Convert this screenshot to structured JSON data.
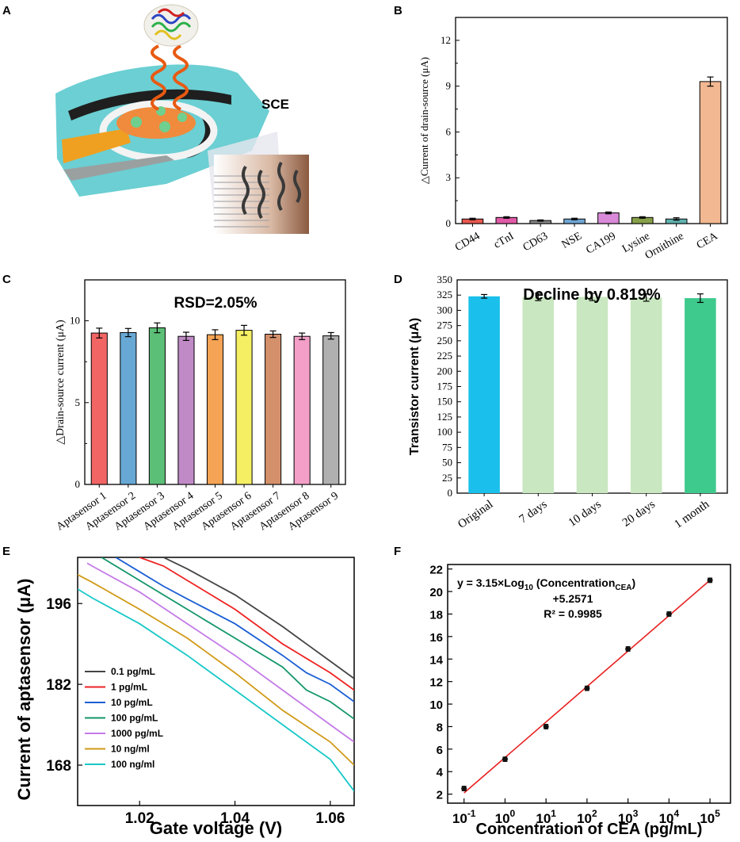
{
  "panel_labels": {
    "a": "A",
    "b": "B",
    "c": "C",
    "d": "D",
    "e": "E",
    "f": "F"
  },
  "panel_a": {
    "sce_label": "SCE"
  },
  "colors": {
    "b": [
      "#e8584f",
      "#e05aa6",
      "#8a8a8a",
      "#6fa6d4",
      "#d98ad8",
      "#87a04a",
      "#5fb3b0",
      "#f2b892"
    ],
    "c": [
      "#f16565",
      "#68a8d4",
      "#5cbf77",
      "#c08ac7",
      "#f5a455",
      "#f5ef64",
      "#d4906b",
      "#f39fc7",
      "#b0b0b0"
    ],
    "d": [
      "#1ac0eb",
      "#c9e7c0",
      "#c9e7c0",
      "#c9e7c0",
      "#3ec98d"
    ],
    "e": [
      "#444444",
      "#ee2222",
      "#1b5fd4",
      "#13966a",
      "#c47ae6",
      "#d09a17",
      "#19c8c8"
    ],
    "f_line": "#e82020"
  },
  "chart_data": [
    {
      "id": "B",
      "type": "bar",
      "categories": [
        "CD44",
        "cTnI",
        "CD63",
        "NSE",
        "CA199",
        "Lysine",
        "Ornithine",
        "CEA"
      ],
      "values": [
        0.3,
        0.4,
        0.2,
        0.3,
        0.7,
        0.4,
        0.3,
        9.3
      ],
      "errors": [
        0.05,
        0.05,
        0.04,
        0.05,
        0.06,
        0.05,
        0.08,
        0.3
      ],
      "ylabel": "△Current of drain-source (μA)",
      "ylim": [
        0,
        13.5
      ],
      "yticks": [
        0,
        3,
        6,
        9,
        12
      ]
    },
    {
      "id": "C",
      "type": "bar",
      "title": "RSD=2.05%",
      "categories": [
        "Aptasensor 1",
        "Aptasensor 2",
        "Aptasensor 3",
        "Aptasensor 4",
        "Aptasensor 5",
        "Aptasensor 6",
        "Aptasensor 7",
        "Aptasensor 8",
        "Aptasensor 9"
      ],
      "values": [
        9.25,
        9.28,
        9.57,
        9.05,
        9.15,
        9.42,
        9.18,
        9.05,
        9.08
      ],
      "errors": [
        0.3,
        0.25,
        0.3,
        0.25,
        0.3,
        0.3,
        0.2,
        0.2,
        0.2
      ],
      "ylabel": "△Drain-source current (μA)",
      "ylim": [
        0,
        12.5
      ],
      "yticks": [
        0,
        5,
        10
      ]
    },
    {
      "id": "D",
      "type": "bar",
      "title": "Decline by  0.819%",
      "categories": [
        "Original",
        "7 days",
        "10 days",
        "20 days",
        "1 month"
      ],
      "values": [
        323,
        322,
        322,
        321,
        320
      ],
      "errors": [
        3,
        6,
        6,
        6,
        7
      ],
      "ylabel": "Transistor current (μA)",
      "ylim": [
        0,
        350
      ],
      "yticks": [
        0,
        25,
        50,
        75,
        100,
        125,
        150,
        175,
        200,
        225,
        250,
        275,
        300,
        325,
        350
      ]
    },
    {
      "id": "E",
      "type": "line",
      "xlabel": "Gate voltage (V)",
      "ylabel": "Current of aptasensor (μA)",
      "xlim": [
        1.007,
        1.065
      ],
      "ylim": [
        161,
        204
      ],
      "xticks": [
        1.02,
        1.04,
        1.06
      ],
      "xtick_labels": [
        "1.02",
        "1.04",
        "1.06"
      ],
      "yticks": [
        168,
        182,
        196
      ],
      "series": [
        {
          "name": "0.1 pg/mL",
          "x": [
            1.025,
            1.03,
            1.04,
            1.05,
            1.055,
            1.06,
            1.065
          ],
          "y": [
            204,
            202,
            197.5,
            192,
            189,
            186,
            183
          ]
        },
        {
          "name": "1 pg/mL",
          "x": [
            1.02,
            1.025,
            1.03,
            1.04,
            1.05,
            1.06,
            1.065
          ],
          "y": [
            204,
            202.5,
            200,
            195,
            189,
            184,
            181
          ]
        },
        {
          "name": "10 pg/mL",
          "x": [
            1.015,
            1.02,
            1.025,
            1.03,
            1.04,
            1.05,
            1.055,
            1.06,
            1.065
          ],
          "y": [
            204,
            201.5,
            199,
            196.8,
            192.5,
            187,
            184,
            182,
            179
          ]
        },
        {
          "name": "100 pg/mL",
          "x": [
            1.012,
            1.02,
            1.03,
            1.04,
            1.05,
            1.055,
            1.06,
            1.065
          ],
          "y": [
            204,
            200,
            195,
            190,
            185,
            181,
            179,
            176
          ]
        },
        {
          "name": "1000 pg/mL",
          "x": [
            1.009,
            1.01,
            1.02,
            1.03,
            1.04,
            1.05,
            1.06,
            1.065
          ],
          "y": [
            203,
            202.5,
            198,
            192.5,
            187,
            181,
            175,
            172
          ]
        },
        {
          "name": "10 ng/ml",
          "x": [
            1.007,
            1.01,
            1.02,
            1.03,
            1.04,
            1.05,
            1.06,
            1.065
          ],
          "y": [
            201,
            199.7,
            195,
            190,
            184,
            177.5,
            172,
            168
          ]
        },
        {
          "name": "100 ng/ml",
          "x": [
            1.007,
            1.01,
            1.02,
            1.03,
            1.04,
            1.05,
            1.06,
            1.065
          ],
          "y": [
            198.5,
            197,
            192.5,
            187,
            181,
            175,
            169,
            163.5
          ]
        }
      ]
    },
    {
      "id": "F",
      "type": "scatter",
      "xlabel": "Concentration of CEA (pg/mL)",
      "x": [
        -1,
        0,
        1,
        2,
        3,
        4,
        5
      ],
      "y": [
        2.5,
        5.1,
        8.0,
        11.4,
        14.9,
        18.0,
        21.0
      ],
      "errors": [
        0.2,
        0.2,
        0.2,
        0.2,
        0.2,
        0.2,
        0.2
      ],
      "fit": {
        "slope": 3.15,
        "intercept": 5.2571
      },
      "xlim": [
        -1.4,
        5.5
      ],
      "ylim": [
        1.2,
        22.4
      ],
      "yticks": [
        2,
        4,
        6,
        8,
        10,
        12,
        14,
        16,
        18,
        20,
        22
      ],
      "xtick_base": "10",
      "xtick_exps": [
        "-1",
        "0",
        "1",
        "2",
        "3",
        "4",
        "5"
      ],
      "equation_line1_pre": "y = 3.15×Log",
      "equation_line1_sub": "10",
      "equation_line1_mid": " (Concentration",
      "equation_line1_sub2": "CEA",
      "equation_line1_post": ")",
      "equation_line2": "+5.2571",
      "r2": "R² = 0.9985"
    }
  ]
}
